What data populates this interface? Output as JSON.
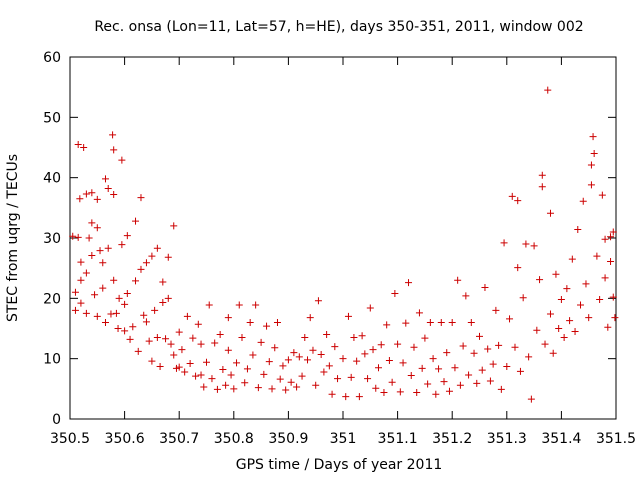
{
  "chart_data": {
    "type": "scatter",
    "title": "Rec. onsa (Lon=11, Lat=57, h=HE), days 350-351, 2011, window 002",
    "xlabel": "GPS time / Days of year 2011",
    "ylabel": "STEC from uqrg / TECUs",
    "xlim": [
      350.5,
      351.5
    ],
    "ylim": [
      0,
      60
    ],
    "x_ticks": [
      350.5,
      350.6,
      350.7,
      350.8,
      350.9,
      351.0,
      351.1,
      351.2,
      351.3,
      351.4,
      351.5
    ],
    "x_tick_labels": [
      "350.5",
      "350.6",
      "350.7",
      "350.8",
      "350.9",
      "351",
      "351.1",
      "351.2",
      "351.3",
      "351.4",
      "351.5"
    ],
    "y_ticks": [
      0,
      10,
      20,
      30,
      40,
      50,
      60
    ],
    "y_tick_labels": [
      "0",
      "10",
      "20",
      "30",
      "40",
      "50",
      "60"
    ],
    "grid": false,
    "legend": "none",
    "marker": "plus",
    "color": "#cc0000",
    "series": [
      {
        "points": [
          [
            350.505,
            30.3
          ],
          [
            350.51,
            18.0
          ],
          [
            350.51,
            21.0
          ],
          [
            350.515,
            30.1
          ],
          [
            350.515,
            45.5
          ],
          [
            350.518,
            36.5
          ],
          [
            350.52,
            23.0
          ],
          [
            350.52,
            26.0
          ],
          [
            350.52,
            19.2
          ],
          [
            350.525,
            45.0
          ],
          [
            350.53,
            37.3
          ],
          [
            350.53,
            24.2
          ],
          [
            350.53,
            17.5
          ],
          [
            350.535,
            30.0
          ],
          [
            350.54,
            37.5
          ],
          [
            350.54,
            32.5
          ],
          [
            350.54,
            27.1
          ],
          [
            350.545,
            20.6
          ],
          [
            350.55,
            36.4
          ],
          [
            350.55,
            31.7
          ],
          [
            350.55,
            17.0
          ],
          [
            350.555,
            27.9
          ],
          [
            350.56,
            25.9
          ],
          [
            350.56,
            21.7
          ],
          [
            350.565,
            39.8
          ],
          [
            350.565,
            16.0
          ],
          [
            350.57,
            38.2
          ],
          [
            350.57,
            28.3
          ],
          [
            350.575,
            17.4
          ],
          [
            350.578,
            47.1
          ],
          [
            350.58,
            44.6
          ],
          [
            350.58,
            37.2
          ],
          [
            350.58,
            23.0
          ],
          [
            350.585,
            17.5
          ],
          [
            350.588,
            15.0
          ],
          [
            350.59,
            20.0
          ],
          [
            350.595,
            42.9
          ],
          [
            350.595,
            28.9
          ],
          [
            350.6,
            19.0
          ],
          [
            350.6,
            14.6
          ],
          [
            350.605,
            30.4
          ],
          [
            350.605,
            20.8
          ],
          [
            350.61,
            13.2
          ],
          [
            350.615,
            15.3
          ],
          [
            350.62,
            32.8
          ],
          [
            350.62,
            22.9
          ],
          [
            350.625,
            11.2
          ],
          [
            350.63,
            36.7
          ],
          [
            350.63,
            24.8
          ],
          [
            350.635,
            17.2
          ],
          [
            350.64,
            25.9
          ],
          [
            350.64,
            16.1
          ],
          [
            350.645,
            12.9
          ],
          [
            350.65,
            27.0
          ],
          [
            350.65,
            9.6
          ],
          [
            350.655,
            18.0
          ],
          [
            350.66,
            28.3
          ],
          [
            350.66,
            13.5
          ],
          [
            350.665,
            8.7
          ],
          [
            350.67,
            22.7
          ],
          [
            350.67,
            19.3
          ],
          [
            350.675,
            13.3
          ],
          [
            350.68,
            26.8
          ],
          [
            350.68,
            20.0
          ],
          [
            350.685,
            12.4
          ],
          [
            350.69,
            32.0
          ],
          [
            350.69,
            10.6
          ],
          [
            350.695,
            8.4
          ],
          [
            350.7,
            14.4
          ],
          [
            350.7,
            8.6
          ],
          [
            350.705,
            11.5
          ],
          [
            350.71,
            7.8
          ],
          [
            350.715,
            17.0
          ],
          [
            350.72,
            9.2
          ],
          [
            350.725,
            13.4
          ],
          [
            350.73,
            7.1
          ],
          [
            350.735,
            15.7
          ],
          [
            350.74,
            12.4
          ],
          [
            350.74,
            7.3
          ],
          [
            350.745,
            5.3
          ],
          [
            350.75,
            9.4
          ],
          [
            350.755,
            18.9
          ],
          [
            350.76,
            6.7
          ],
          [
            350.765,
            12.6
          ],
          [
            350.77,
            4.9
          ],
          [
            350.775,
            14.0
          ],
          [
            350.78,
            8.2
          ],
          [
            350.785,
            5.6
          ],
          [
            350.79,
            16.8
          ],
          [
            350.79,
            11.4
          ],
          [
            350.795,
            7.3
          ],
          [
            350.8,
            5.0
          ],
          [
            350.805,
            9.3
          ],
          [
            350.81,
            18.9
          ],
          [
            350.815,
            13.5
          ],
          [
            350.82,
            6.0
          ],
          [
            350.825,
            8.3
          ],
          [
            350.83,
            16.0
          ],
          [
            350.835,
            10.6
          ],
          [
            350.84,
            18.9
          ],
          [
            350.845,
            5.2
          ],
          [
            350.85,
            12.7
          ],
          [
            350.855,
            7.4
          ],
          [
            350.86,
            15.4
          ],
          [
            350.865,
            9.5
          ],
          [
            350.87,
            5.0
          ],
          [
            350.875,
            11.8
          ],
          [
            350.88,
            16.0
          ],
          [
            350.885,
            6.6
          ],
          [
            350.89,
            8.8
          ],
          [
            350.895,
            4.8
          ],
          [
            350.9,
            9.8
          ],
          [
            350.905,
            6.1
          ],
          [
            350.91,
            11.0
          ],
          [
            350.915,
            5.3
          ],
          [
            350.92,
            10.3
          ],
          [
            350.925,
            7.1
          ],
          [
            350.93,
            13.5
          ],
          [
            350.935,
            9.8
          ],
          [
            350.94,
            16.8
          ],
          [
            350.945,
            11.4
          ],
          [
            350.95,
            5.6
          ],
          [
            350.955,
            19.6
          ],
          [
            350.96,
            10.7
          ],
          [
            350.965,
            7.8
          ],
          [
            350.97,
            14.0
          ],
          [
            350.975,
            8.8
          ],
          [
            350.98,
            4.1
          ],
          [
            350.985,
            12.0
          ],
          [
            350.99,
            6.7
          ],
          [
            351.0,
            10.0
          ],
          [
            351.005,
            3.7
          ],
          [
            351.01,
            17.0
          ],
          [
            351.015,
            6.9
          ],
          [
            351.02,
            13.5
          ],
          [
            351.025,
            9.6
          ],
          [
            351.03,
            3.7
          ],
          [
            351.035,
            13.8
          ],
          [
            351.04,
            10.8
          ],
          [
            351.045,
            6.7
          ],
          [
            351.05,
            18.4
          ],
          [
            351.055,
            11.5
          ],
          [
            351.06,
            5.1
          ],
          [
            351.065,
            8.5
          ],
          [
            351.07,
            12.3
          ],
          [
            351.075,
            4.4
          ],
          [
            351.08,
            15.6
          ],
          [
            351.085,
            9.7
          ],
          [
            351.09,
            6.1
          ],
          [
            351.095,
            20.8
          ],
          [
            351.1,
            12.4
          ],
          [
            351.105,
            4.5
          ],
          [
            351.11,
            9.3
          ],
          [
            351.115,
            15.9
          ],
          [
            351.12,
            22.6
          ],
          [
            351.125,
            7.2
          ],
          [
            351.13,
            11.9
          ],
          [
            351.135,
            4.4
          ],
          [
            351.14,
            17.6
          ],
          [
            351.145,
            8.4
          ],
          [
            351.15,
            13.4
          ],
          [
            351.155,
            5.8
          ],
          [
            351.16,
            16.0
          ],
          [
            351.165,
            10.0
          ],
          [
            351.17,
            4.1
          ],
          [
            351.175,
            8.3
          ],
          [
            351.18,
            16.0
          ],
          [
            351.185,
            6.2
          ],
          [
            351.19,
            11.0
          ],
          [
            351.195,
            4.6
          ],
          [
            351.2,
            16.0
          ],
          [
            351.205,
            8.5
          ],
          [
            351.21,
            23.0
          ],
          [
            351.215,
            5.6
          ],
          [
            351.22,
            12.1
          ],
          [
            351.225,
            20.4
          ],
          [
            351.23,
            7.3
          ],
          [
            351.235,
            16.0
          ],
          [
            351.24,
            10.9
          ],
          [
            351.245,
            5.9
          ],
          [
            351.25,
            13.7
          ],
          [
            351.255,
            8.1
          ],
          [
            351.26,
            21.8
          ],
          [
            351.265,
            11.6
          ],
          [
            351.27,
            6.3
          ],
          [
            351.275,
            9.1
          ],
          [
            351.28,
            18.0
          ],
          [
            351.285,
            12.2
          ],
          [
            351.29,
            4.9
          ],
          [
            351.295,
            29.2
          ],
          [
            351.3,
            8.7
          ],
          [
            351.305,
            16.6
          ],
          [
            351.31,
            36.9
          ],
          [
            351.315,
            11.9
          ],
          [
            351.32,
            25.1
          ],
          [
            351.32,
            36.2
          ],
          [
            351.325,
            7.9
          ],
          [
            351.33,
            20.1
          ],
          [
            351.335,
            29.0
          ],
          [
            351.34,
            10.3
          ],
          [
            351.345,
            3.3
          ],
          [
            351.35,
            28.7
          ],
          [
            351.355,
            14.7
          ],
          [
            351.36,
            23.1
          ],
          [
            351.365,
            40.4
          ],
          [
            351.365,
            38.5
          ],
          [
            351.37,
            12.4
          ],
          [
            351.375,
            54.5
          ],
          [
            351.38,
            34.1
          ],
          [
            351.38,
            17.4
          ],
          [
            351.385,
            10.9
          ],
          [
            351.39,
            24.0
          ],
          [
            351.395,
            15.0
          ],
          [
            351.4,
            19.8
          ],
          [
            351.405,
            13.5
          ],
          [
            351.41,
            21.6
          ],
          [
            351.415,
            16.3
          ],
          [
            351.42,
            26.5
          ],
          [
            351.425,
            14.5
          ],
          [
            351.43,
            31.4
          ],
          [
            351.435,
            18.9
          ],
          [
            351.44,
            36.1
          ],
          [
            351.445,
            22.4
          ],
          [
            351.45,
            16.8
          ],
          [
            351.455,
            38.8
          ],
          [
            351.455,
            42.1
          ],
          [
            351.458,
            46.8
          ],
          [
            351.46,
            44.0
          ],
          [
            351.465,
            27.0
          ],
          [
            351.47,
            19.8
          ],
          [
            351.475,
            37.1
          ],
          [
            351.48,
            29.8
          ],
          [
            351.48,
            23.4
          ],
          [
            351.485,
            15.2
          ],
          [
            351.49,
            30.2
          ],
          [
            351.49,
            26.1
          ],
          [
            351.495,
            31.0
          ],
          [
            351.495,
            20.2
          ],
          [
            351.498,
            16.8
          ]
        ]
      }
    ]
  }
}
